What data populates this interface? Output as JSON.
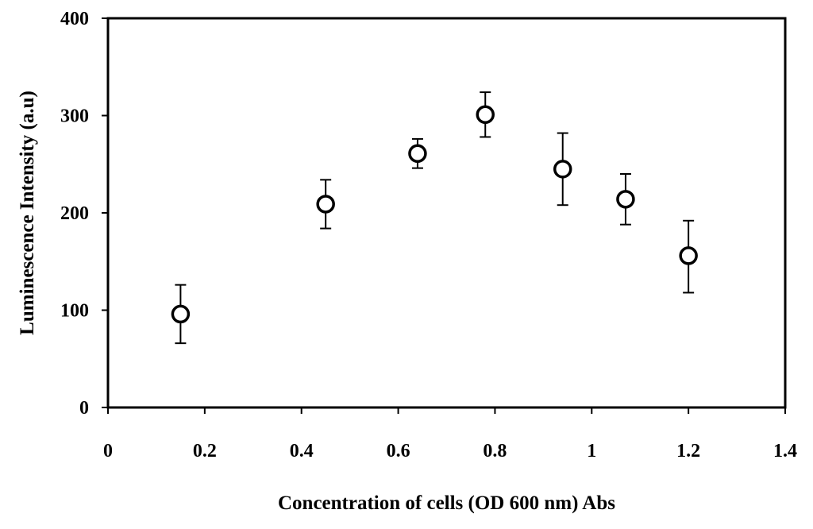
{
  "chart_data": {
    "type": "scatter",
    "title": "",
    "xlabel": "Concentration of cells (OD 600 nm) Abs",
    "ylabel": "Luminescence Intensity (a.u)",
    "xlim": [
      0,
      1.4
    ],
    "ylim": [
      0,
      400
    ],
    "x_ticks": [
      0,
      0.2,
      0.4,
      0.6,
      0.8,
      1,
      1.2,
      1.4
    ],
    "x_tick_labels": [
      "0",
      "0.2",
      "0.4",
      "0.6",
      "0.8",
      "1",
      "1.2",
      "1.4"
    ],
    "y_ticks": [
      0,
      100,
      200,
      300,
      400
    ],
    "y_tick_labels": [
      "0",
      "100",
      "200",
      "300",
      "400"
    ],
    "grid": false,
    "legend": false,
    "marker": "open-circle",
    "colors": {
      "marker_stroke": "#000000",
      "marker_fill": "#ffffff",
      "axis": "#000000"
    },
    "series": [
      {
        "points": [
          {
            "x": 0.15,
            "y": 96,
            "err_low": 30,
            "err_high": 30
          },
          {
            "x": 0.45,
            "y": 209,
            "err_low": 25,
            "err_high": 25
          },
          {
            "x": 0.64,
            "y": 261,
            "err_low": 15,
            "err_high": 15
          },
          {
            "x": 0.78,
            "y": 301,
            "err_low": 23,
            "err_high": 23
          },
          {
            "x": 0.94,
            "y": 245,
            "err_low": 37,
            "err_high": 37
          },
          {
            "x": 1.07,
            "y": 214,
            "err_low": 26,
            "err_high": 26
          },
          {
            "x": 1.2,
            "y": 156,
            "err_low": 38,
            "err_high": 36
          }
        ]
      }
    ]
  }
}
